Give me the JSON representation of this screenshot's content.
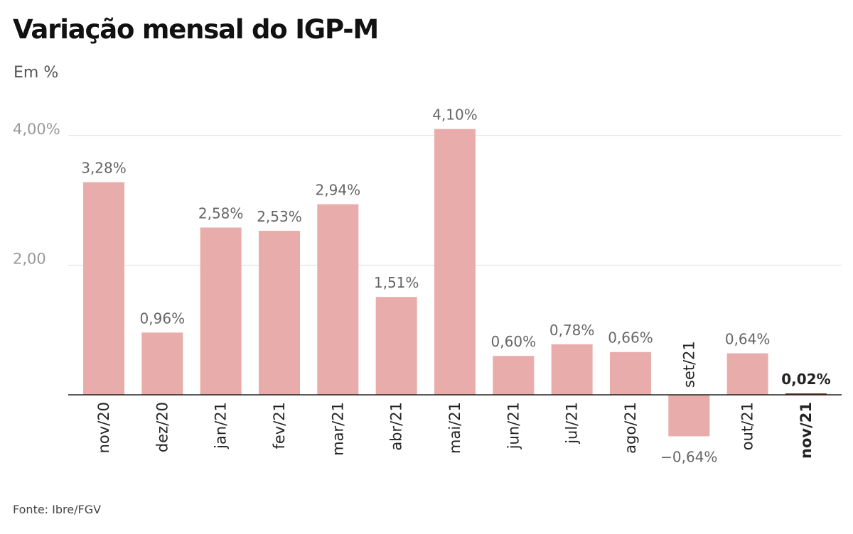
{
  "title": "Variação mensal do IGP-M",
  "subtitle": "Em %",
  "source": "Fonte: Ibre/FGV",
  "colors": {
    "bar": "#e8adab",
    "highlight_bar": "#8c1f1f",
    "grid": "#dddddd",
    "axis": "#222222",
    "tick_label": "#999999",
    "value_label": "#666666",
    "category_label": "#222222",
    "highlight_label": "#222222"
  },
  "chart_data": {
    "type": "bar",
    "title": "Variação mensal do IGP-M",
    "subtitle": "Em %",
    "xlabel": "",
    "ylabel": "",
    "categories": [
      "nov/20",
      "dez/20",
      "jan/21",
      "fev/21",
      "mar/21",
      "abr/21",
      "mai/21",
      "jun/21",
      "jul/21",
      "ago/21",
      "set/21",
      "out/21",
      "nov/21"
    ],
    "values": [
      3.28,
      0.96,
      2.58,
      2.53,
      2.94,
      1.51,
      4.1,
      0.6,
      0.78,
      0.66,
      -0.64,
      0.64,
      0.02
    ],
    "value_labels": [
      "3,28%",
      "0,96%",
      "2,58%",
      "2,53%",
      "2,94%",
      "1,51%",
      "4,10%",
      "0,60%",
      "0,78%",
      "0,66%",
      "−0,64%",
      "0,64%",
      "0,02%"
    ],
    "highlight_index": 12,
    "yticks": [
      2,
      4
    ],
    "ytick_labels": [
      "2,00",
      "4,00%"
    ],
    "ylim": [
      -0.9,
      4.5
    ],
    "grid": true,
    "legend": "none"
  }
}
